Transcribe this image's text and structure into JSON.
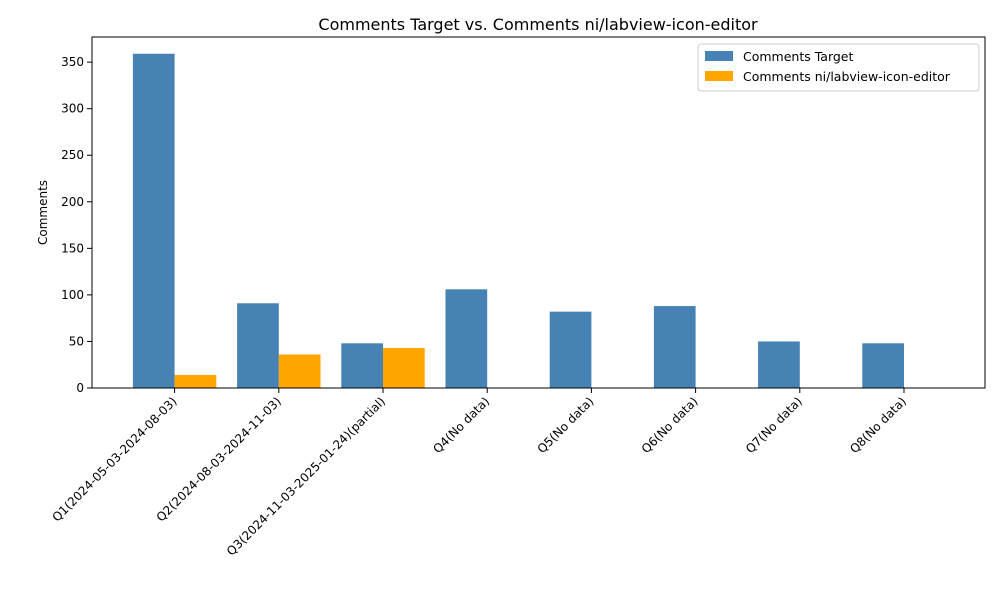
{
  "chart_data": {
    "type": "bar",
    "title": "Comments Target vs. Comments ni/labview-icon-editor",
    "xlabel": "",
    "ylabel": "Comments",
    "ylim": [
      0,
      377
    ],
    "yticks": [
      0,
      50,
      100,
      150,
      200,
      250,
      300,
      350
    ],
    "grid": false,
    "legend_position": "top-right",
    "categories": [
      "Q1(2024-05-03-2024-08-03)",
      "Q2(2024-08-03-2024-11-03)",
      "Q3(2024-11-03-2025-01-24)(partial)",
      "Q4(No data)",
      "Q5(No data)",
      "Q6(No data)",
      "Q7(No data)",
      "Q8(No data)"
    ],
    "series": [
      {
        "name": "Comments Target",
        "color": "#4682b4",
        "values": [
          359,
          91,
          48,
          106,
          82,
          88,
          50,
          48
        ]
      },
      {
        "name": "Comments ni/labview-icon-editor",
        "color": "#ffa500",
        "values": [
          14,
          36,
          43,
          0,
          0,
          0,
          0,
          0
        ]
      }
    ]
  }
}
